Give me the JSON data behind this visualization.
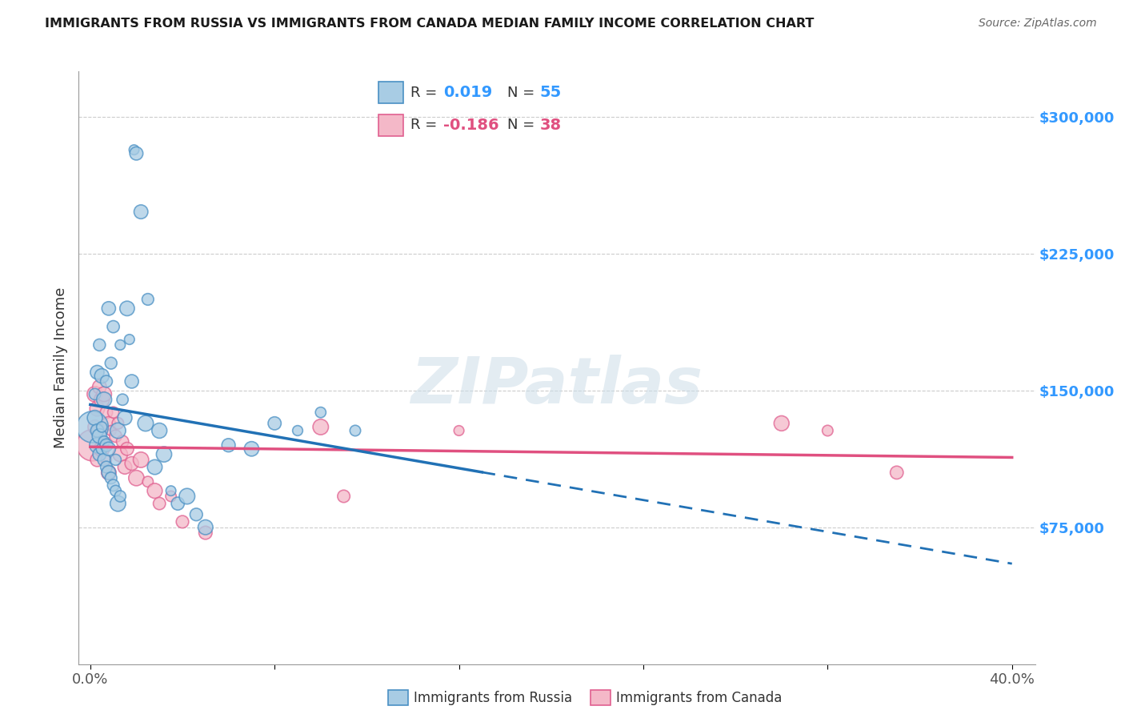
{
  "title": "IMMIGRANTS FROM RUSSIA VS IMMIGRANTS FROM CANADA MEDIAN FAMILY INCOME CORRELATION CHART",
  "source": "Source: ZipAtlas.com",
  "ylabel": "Median Family Income",
  "ytick_vals": [
    75000,
    150000,
    225000,
    300000
  ],
  "ytick_labels": [
    "$75,000",
    "$150,000",
    "$225,000",
    "$300,000"
  ],
  "xtick_vals": [
    0.0,
    0.08,
    0.16,
    0.24,
    0.32,
    0.4
  ],
  "xtick_labels": [
    "0.0%",
    "",
    "",
    "",
    "",
    "40.0%"
  ],
  "xlim": [
    -0.005,
    0.41
  ],
  "ylim": [
    0,
    325000
  ],
  "blue_color": "#a8cce4",
  "pink_color": "#f4b8c8",
  "blue_edge": "#4a90c4",
  "pink_edge": "#e06090",
  "blue_line": "#2171b5",
  "pink_line": "#e05080",
  "watermark": "ZIPatlas",
  "legend_r1": "0.019",
  "legend_n1": "55",
  "legend_r2": "-0.186",
  "legend_n2": "38",
  "russia_x": [
    0.001,
    0.002,
    0.002,
    0.003,
    0.003,
    0.003,
    0.004,
    0.004,
    0.004,
    0.005,
    0.005,
    0.005,
    0.006,
    0.006,
    0.006,
    0.007,
    0.007,
    0.007,
    0.008,
    0.008,
    0.008,
    0.009,
    0.009,
    0.01,
    0.01,
    0.011,
    0.011,
    0.012,
    0.012,
    0.013,
    0.013,
    0.014,
    0.015,
    0.016,
    0.017,
    0.018,
    0.019,
    0.02,
    0.022,
    0.024,
    0.025,
    0.028,
    0.03,
    0.032,
    0.035,
    0.038,
    0.042,
    0.046,
    0.05,
    0.06,
    0.07,
    0.08,
    0.09,
    0.1,
    0.115
  ],
  "russia_y": [
    130000,
    135000,
    148000,
    120000,
    128000,
    160000,
    125000,
    115000,
    175000,
    118000,
    130000,
    158000,
    112000,
    122000,
    145000,
    108000,
    120000,
    155000,
    105000,
    118000,
    195000,
    102000,
    165000,
    98000,
    185000,
    95000,
    112000,
    88000,
    128000,
    92000,
    175000,
    145000,
    135000,
    195000,
    178000,
    155000,
    282000,
    280000,
    248000,
    132000,
    200000,
    108000,
    128000,
    115000,
    95000,
    88000,
    92000,
    82000,
    75000,
    120000,
    118000,
    132000,
    128000,
    138000,
    128000
  ],
  "canada_x": [
    0.001,
    0.002,
    0.002,
    0.003,
    0.003,
    0.004,
    0.004,
    0.005,
    0.005,
    0.006,
    0.006,
    0.007,
    0.007,
    0.008,
    0.008,
    0.009,
    0.01,
    0.011,
    0.012,
    0.013,
    0.014,
    0.015,
    0.016,
    0.018,
    0.02,
    0.022,
    0.025,
    0.028,
    0.03,
    0.035,
    0.04,
    0.05,
    0.1,
    0.11,
    0.16,
    0.3,
    0.32,
    0.35
  ],
  "canada_y": [
    120000,
    148000,
    130000,
    140000,
    112000,
    152000,
    128000,
    145000,
    118000,
    148000,
    122000,
    138000,
    112000,
    132000,
    105000,
    128000,
    138000,
    125000,
    132000,
    115000,
    122000,
    108000,
    118000,
    110000,
    102000,
    112000,
    100000,
    95000,
    88000,
    92000,
    78000,
    72000,
    130000,
    92000,
    128000,
    132000,
    128000,
    105000
  ],
  "russia_large_x": [
    0.001
  ],
  "russia_large_y": [
    130000
  ],
  "canada_large_x": [
    0.001
  ],
  "canada_large_y": [
    120000
  ],
  "dot_size": 120,
  "large_dot_size": 800
}
